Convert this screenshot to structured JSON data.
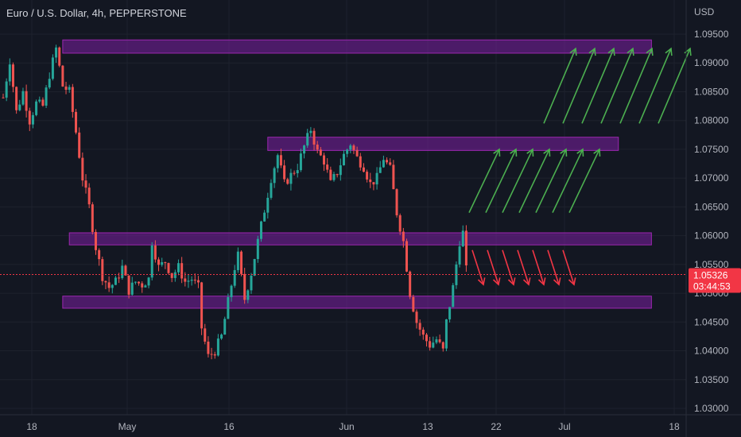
{
  "header": {
    "title": "Euro / U.S. Dollar, 4h, PEPPERSTONE"
  },
  "chart_data": {
    "type": "candlestick",
    "title": "Euro / U.S. Dollar, 4h, PEPPERSTONE",
    "y_unit": "USD",
    "ylim": [
      1.0285,
      1.0985
    ],
    "y_ticks": [
      "1.09500",
      "1.09000",
      "1.08500",
      "1.08000",
      "1.07500",
      "1.07000",
      "1.06500",
      "1.06000",
      "1.05500",
      "1.05000",
      "1.04500",
      "1.04000",
      "1.03500",
      "1.03000"
    ],
    "x_ticks": [
      "18",
      "May",
      "16",
      "Jun",
      "13",
      "22",
      "Jul",
      "18"
    ],
    "current_price": {
      "price": "1.05326",
      "countdown": "03:44:53",
      "value": 1.05326
    },
    "price_path": [
      [
        0,
        1.084
      ],
      [
        2,
        1.0905
      ],
      [
        4,
        1.0815
      ],
      [
        6,
        1.085
      ],
      [
        8,
        1.08
      ],
      [
        10,
        1.083
      ],
      [
        12,
        1.0825
      ],
      [
        14,
        1.088
      ],
      [
        16,
        1.0925
      ],
      [
        18,
        1.086
      ],
      [
        20,
        1.085
      ],
      [
        22,
        1.078
      ],
      [
        24,
        1.07
      ],
      [
        26,
        1.065
      ],
      [
        28,
        1.058
      ],
      [
        30,
        1.053
      ],
      [
        32,
        1.051
      ],
      [
        34,
        1.052
      ],
      [
        36,
        1.0545
      ],
      [
        38,
        1.0505
      ],
      [
        40,
        1.052
      ],
      [
        42,
        1.0515
      ],
      [
        44,
        1.0525
      ],
      [
        45,
        1.059
      ],
      [
        47,
        1.0545
      ],
      [
        49,
        1.0555
      ],
      [
        51,
        1.053
      ],
      [
        53,
        1.0545
      ],
      [
        55,
        1.052
      ],
      [
        57,
        1.0525
      ],
      [
        59,
        1.051
      ],
      [
        60,
        1.044
      ],
      [
        62,
        1.039
      ],
      [
        64,
        1.04
      ],
      [
        66,
        1.0425
      ],
      [
        68,
        1.0485
      ],
      [
        70,
        1.0545
      ],
      [
        71,
        1.0565
      ],
      [
        73,
        1.049
      ],
      [
        75,
        1.0535
      ],
      [
        77,
        1.059
      ],
      [
        79,
        1.0645
      ],
      [
        81,
        1.07
      ],
      [
        83,
        1.074
      ],
      [
        85,
        1.069
      ],
      [
        87,
        1.0705
      ],
      [
        89,
        1.072
      ],
      [
        91,
        1.0755
      ],
      [
        93,
        1.0785
      ],
      [
        95,
        1.0745
      ],
      [
        97,
        1.073
      ],
      [
        99,
        1.069
      ],
      [
        101,
        1.071
      ],
      [
        103,
        1.074
      ],
      [
        105,
        1.076
      ],
      [
        107,
        1.0735
      ],
      [
        109,
        1.072
      ],
      [
        111,
        1.069
      ],
      [
        113,
        1.07
      ],
      [
        115,
        1.0735
      ],
      [
        117,
        1.0715
      ],
      [
        119,
        1.064
      ],
      [
        121,
        1.059
      ],
      [
        123,
        1.05
      ],
      [
        125,
        1.045
      ],
      [
        127,
        1.0425
      ],
      [
        129,
        1.041
      ],
      [
        131,
        1.042
      ],
      [
        133,
        1.04
      ],
      [
        134,
        1.045
      ],
      [
        136,
        1.051
      ],
      [
        138,
        1.059
      ],
      [
        139,
        1.0605
      ],
      [
        140,
        1.054
      ]
    ],
    "zones": [
      {
        "top": 1.094,
        "bottom": 1.0917,
        "x_start": 18,
        "x_end": 196
      },
      {
        "top": 1.0771,
        "bottom": 1.0748,
        "x_start": 80,
        "x_end": 186
      },
      {
        "top": 1.0605,
        "bottom": 1.0584,
        "x_start": 20,
        "x_end": 196
      },
      {
        "top": 1.0495,
        "bottom": 1.0474,
        "x_start": 18,
        "x_end": 196
      }
    ],
    "projection_arrows": [
      {
        "direction": "up",
        "color": "#4caf50",
        "from": 1.0795,
        "to": 1.0925,
        "count": 7
      },
      {
        "direction": "up",
        "color": "#4caf50",
        "from": 1.064,
        "to": 1.075,
        "count": 7
      },
      {
        "direction": "down",
        "color": "#f23645",
        "from": 1.0575,
        "to": 1.0515,
        "count": 7
      }
    ],
    "colors": {
      "background": "#131722",
      "up": "#26a69a",
      "down": "#ef5350",
      "zone_fill": "#7b1fa2",
      "zone_border": "#9c27b0",
      "price_line": "#f23645"
    }
  }
}
